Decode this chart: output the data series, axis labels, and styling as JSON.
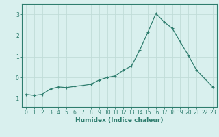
{
  "x": [
    0,
    1,
    2,
    3,
    4,
    5,
    6,
    7,
    8,
    9,
    10,
    11,
    12,
    13,
    14,
    15,
    16,
    17,
    18,
    19,
    20,
    21,
    22,
    23
  ],
  "y": [
    -0.8,
    -0.85,
    -0.8,
    -0.55,
    -0.45,
    -0.48,
    -0.42,
    -0.38,
    -0.32,
    -0.12,
    0.0,
    0.08,
    0.35,
    0.55,
    1.3,
    2.15,
    3.05,
    2.65,
    2.35,
    1.7,
    1.05,
    0.35,
    -0.05,
    -0.45
  ],
  "line_color": "#2e7d6e",
  "marker": "+",
  "marker_size": 3,
  "background_color": "#d9f0ee",
  "grid_color": "#c0dcd8",
  "axis_color": "#2e7d6e",
  "xlabel": "Humidex (Indice chaleur)",
  "ylim": [
    -1.4,
    3.5
  ],
  "xlim": [
    -0.5,
    23.5
  ],
  "yticks": [
    -1,
    0,
    1,
    2,
    3
  ],
  "xtick_labels": [
    "0",
    "1",
    "2",
    "3",
    "4",
    "5",
    "6",
    "7",
    "8",
    "9",
    "10",
    "11",
    "12",
    "13",
    "14",
    "15",
    "16",
    "17",
    "18",
    "19",
    "20",
    "21",
    "22",
    "23"
  ],
  "tick_color": "#2e7d6e",
  "label_fontsize": 6.5,
  "tick_fontsize": 5.5
}
